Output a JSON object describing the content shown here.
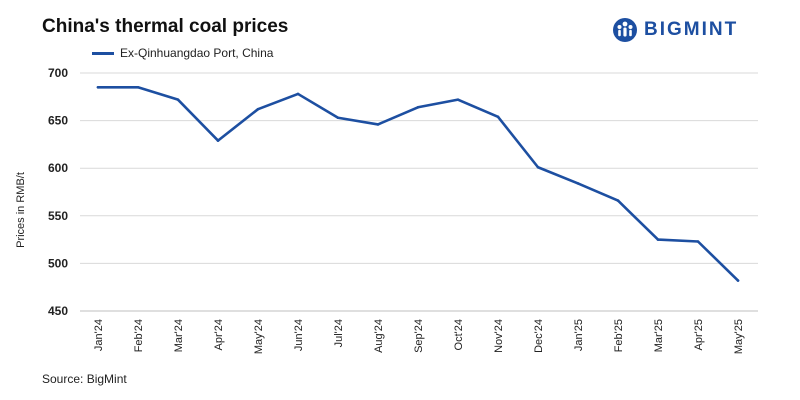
{
  "chart_data": {
    "type": "line",
    "title": "China's thermal coal prices",
    "xlabel": "",
    "ylabel": "Prices in RMB/t",
    "ylim": [
      450,
      700
    ],
    "yticks": [
      450,
      500,
      550,
      600,
      650,
      700
    ],
    "grid": true,
    "legend_position": "top-left",
    "categories": [
      "Jan'24",
      "Feb'24",
      "Mar'24",
      "Apr'24",
      "May'24",
      "Jun'24",
      "Jul'24",
      "Aug'24",
      "Sep'24",
      "Oct'24",
      "Nov'24",
      "Dec'24",
      "Jan'25",
      "Feb'25",
      "Mar'25",
      "Apr'25",
      "May'25"
    ],
    "series": [
      {
        "name": "Ex-Qinhuangdao Port, China",
        "color": "#1d4fa1",
        "values": [
          685,
          685,
          672,
          629,
          662,
          678,
          653,
          646,
          664,
          672,
          654,
          601,
          584,
          566,
          525,
          523,
          482
        ]
      }
    ]
  },
  "brand": {
    "name": "BIGMINT",
    "icon": "bigmint-logo-icon",
    "color": "#1d4fa1"
  },
  "source": "Source: BigMint"
}
